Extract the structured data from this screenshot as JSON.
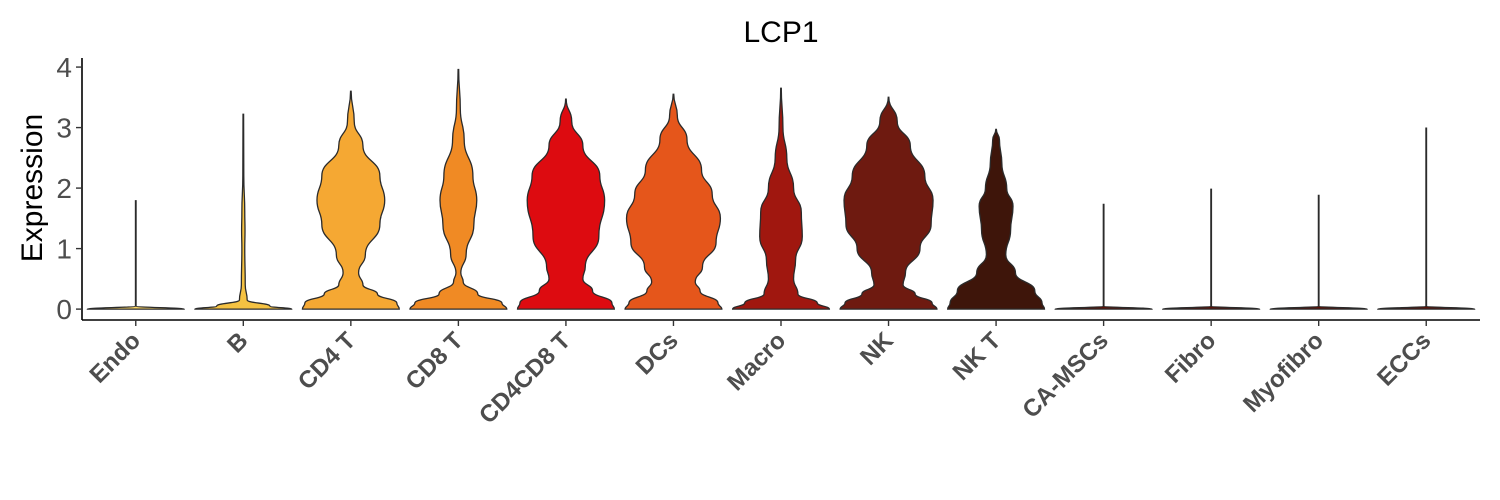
{
  "chart_data": {
    "type": "violin",
    "title": "LCP1",
    "xlabel": "",
    "ylabel": "Expression",
    "ylim": [
      -0.18,
      4.15
    ],
    "yticks": [
      0,
      1,
      2,
      3,
      4
    ],
    "grid": false,
    "legend": "none",
    "categories": [
      "Endo",
      "B",
      "CD4 T",
      "CD8 T",
      "CD4CD8 T",
      "DCs",
      "Macro",
      "NK",
      "NK T",
      "CA-MSCs",
      "Fibro",
      "Myofibro",
      "ECCs"
    ],
    "colors": [
      "#FFD966",
      "#F5C242",
      "#F5A833",
      "#F08A24",
      "#DD0B10",
      "#E5561B",
      "#A0170F",
      "#6E1A10",
      "#3E150A",
      "#5A1208",
      "#5A1208",
      "#5A1208",
      "#5A1208"
    ],
    "series": [
      {
        "category": "Endo",
        "max": 1.79,
        "density": [
          [
            0,
            1.0
          ],
          [
            0.05,
            0.0
          ],
          [
            1.79,
            0.0
          ]
        ]
      },
      {
        "category": "B",
        "max": 3.22,
        "density": [
          [
            0,
            1.0
          ],
          [
            0.05,
            0.55
          ],
          [
            0.15,
            0.08
          ],
          [
            0.4,
            0.04
          ],
          [
            1.0,
            0.03
          ],
          [
            1.3,
            0.035
          ],
          [
            1.6,
            0.03
          ],
          [
            2.2,
            0.01
          ],
          [
            3.22,
            0.0
          ]
        ]
      },
      {
        "category": "CD4 T",
        "max": 3.6,
        "density": [
          [
            0,
            1.0
          ],
          [
            0.1,
            0.95
          ],
          [
            0.25,
            0.55
          ],
          [
            0.4,
            0.25
          ],
          [
            0.6,
            0.16
          ],
          [
            0.9,
            0.3
          ],
          [
            1.4,
            0.6
          ],
          [
            1.8,
            0.7
          ],
          [
            2.2,
            0.6
          ],
          [
            2.7,
            0.25
          ],
          [
            3.1,
            0.07
          ],
          [
            3.6,
            0.0
          ]
        ]
      },
      {
        "category": "CD8 T",
        "max": 3.96,
        "density": [
          [
            0,
            1.0
          ],
          [
            0.1,
            0.9
          ],
          [
            0.25,
            0.4
          ],
          [
            0.45,
            0.1
          ],
          [
            0.6,
            0.05
          ],
          [
            0.9,
            0.16
          ],
          [
            1.4,
            0.32
          ],
          [
            1.8,
            0.38
          ],
          [
            2.2,
            0.3
          ],
          [
            2.8,
            0.12
          ],
          [
            3.3,
            0.04
          ],
          [
            3.96,
            0.0
          ]
        ]
      },
      {
        "category": "CD4CD8 T",
        "max": 3.47,
        "density": [
          [
            0,
            1.0
          ],
          [
            0.1,
            0.95
          ],
          [
            0.3,
            0.55
          ],
          [
            0.5,
            0.35
          ],
          [
            0.7,
            0.4
          ],
          [
            1.2,
            0.68
          ],
          [
            1.8,
            0.8
          ],
          [
            2.2,
            0.7
          ],
          [
            2.7,
            0.35
          ],
          [
            3.1,
            0.12
          ],
          [
            3.47,
            0.0
          ]
        ]
      },
      {
        "category": "DCs",
        "max": 3.55,
        "density": [
          [
            0,
            1.0
          ],
          [
            0.1,
            0.92
          ],
          [
            0.3,
            0.55
          ],
          [
            0.45,
            0.45
          ],
          [
            0.7,
            0.6
          ],
          [
            1.1,
            0.88
          ],
          [
            1.5,
            0.97
          ],
          [
            1.9,
            0.8
          ],
          [
            2.3,
            0.58
          ],
          [
            2.8,
            0.28
          ],
          [
            3.2,
            0.08
          ],
          [
            3.55,
            0.0
          ]
        ]
      },
      {
        "category": "Macro",
        "max": 3.65,
        "density": [
          [
            0,
            1.0
          ],
          [
            0.1,
            0.75
          ],
          [
            0.25,
            0.35
          ],
          [
            0.5,
            0.26
          ],
          [
            0.8,
            0.3
          ],
          [
            1.2,
            0.44
          ],
          [
            1.6,
            0.42
          ],
          [
            2.0,
            0.26
          ],
          [
            2.5,
            0.12
          ],
          [
            3.0,
            0.04
          ],
          [
            3.65,
            0.0
          ]
        ]
      },
      {
        "category": "NK",
        "max": 3.5,
        "density": [
          [
            0,
            1.0
          ],
          [
            0.1,
            0.9
          ],
          [
            0.25,
            0.55
          ],
          [
            0.4,
            0.3
          ],
          [
            0.6,
            0.35
          ],
          [
            1.0,
            0.65
          ],
          [
            1.4,
            0.88
          ],
          [
            1.8,
            0.92
          ],
          [
            2.2,
            0.75
          ],
          [
            2.7,
            0.45
          ],
          [
            3.1,
            0.18
          ],
          [
            3.5,
            0.0
          ]
        ]
      },
      {
        "category": "NK T",
        "max": 2.97,
        "density": [
          [
            0,
            1.0
          ],
          [
            0.1,
            0.95
          ],
          [
            0.3,
            0.8
          ],
          [
            0.6,
            0.4
          ],
          [
            0.9,
            0.2
          ],
          [
            1.3,
            0.3
          ],
          [
            1.7,
            0.35
          ],
          [
            2.0,
            0.22
          ],
          [
            2.4,
            0.12
          ],
          [
            2.8,
            0.07
          ],
          [
            2.97,
            0.0
          ]
        ]
      },
      {
        "category": "CA-MSCs",
        "max": 1.73,
        "density": [
          [
            0,
            1.0
          ],
          [
            0.05,
            0.0
          ],
          [
            1.73,
            0.0
          ]
        ]
      },
      {
        "category": "Fibro",
        "max": 1.98,
        "density": [
          [
            0,
            1.0
          ],
          [
            0.05,
            0.0
          ],
          [
            1.98,
            0.0
          ]
        ]
      },
      {
        "category": "Myofibro",
        "max": 1.88,
        "density": [
          [
            0,
            1.0
          ],
          [
            0.05,
            0.0
          ],
          [
            1.88,
            0.0
          ]
        ]
      },
      {
        "category": "ECCs",
        "max": 2.99,
        "density": [
          [
            0,
            1.0
          ],
          [
            0.05,
            0.0
          ],
          [
            2.99,
            0.0
          ]
        ]
      }
    ]
  }
}
